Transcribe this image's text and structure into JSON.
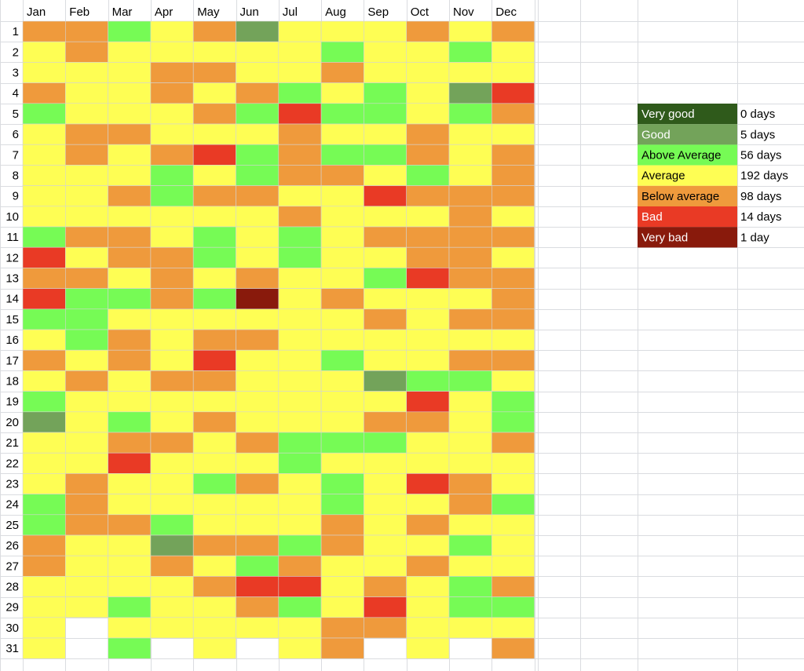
{
  "colors": {
    "Very good": "#2f5a1b",
    "Good": "#73a35a",
    "Above Average": "#76fb55",
    "Average": "#fefe54",
    "Below average": "#ef9a3c",
    "Bad": "#e93a25",
    "Very bad": "#891a0c",
    "empty": "#ffffff"
  },
  "chart_data": {
    "type": "heatmap",
    "columns": [
      "Jan",
      "Feb",
      "Mar",
      "Apr",
      "May",
      "Jun",
      "Jul",
      "Aug",
      "Sep",
      "Oct",
      "Nov",
      "Dec"
    ],
    "rows": [
      "1",
      "2",
      "3",
      "4",
      "5",
      "6",
      "7",
      "8",
      "9",
      "10",
      "11",
      "12",
      "13",
      "14",
      "15",
      "16",
      "17",
      "18",
      "19",
      "20",
      "21",
      "22",
      "23",
      "24",
      "25",
      "26",
      "27",
      "28",
      "29",
      "30",
      "31"
    ],
    "codes": {
      "VG": "Very good",
      "G": "Good",
      "AA": "Above Average",
      "A": "Average",
      "BA": "Below average",
      "B": "Bad",
      "VB": "Very bad",
      "X": "empty"
    },
    "cells": [
      [
        "BA",
        "BA",
        "AA",
        "A",
        "BA",
        "G",
        "A",
        "A",
        "A",
        "BA",
        "A",
        "BA"
      ],
      [
        "A",
        "BA",
        "A",
        "A",
        "A",
        "A",
        "A",
        "AA",
        "A",
        "A",
        "AA",
        "A"
      ],
      [
        "A",
        "A",
        "A",
        "BA",
        "BA",
        "A",
        "A",
        "BA",
        "A",
        "A",
        "A",
        "A"
      ],
      [
        "BA",
        "A",
        "A",
        "BA",
        "A",
        "BA",
        "AA",
        "A",
        "AA",
        "A",
        "G",
        "B"
      ],
      [
        "AA",
        "A",
        "A",
        "A",
        "BA",
        "AA",
        "B",
        "AA",
        "AA",
        "A",
        "AA",
        "BA"
      ],
      [
        "A",
        "BA",
        "BA",
        "A",
        "A",
        "A",
        "BA",
        "A",
        "A",
        "BA",
        "A",
        "A"
      ],
      [
        "A",
        "BA",
        "A",
        "BA",
        "B",
        "AA",
        "BA",
        "AA",
        "AA",
        "BA",
        "A",
        "BA"
      ],
      [
        "A",
        "A",
        "A",
        "AA",
        "A",
        "AA",
        "BA",
        "BA",
        "A",
        "AA",
        "A",
        "BA"
      ],
      [
        "A",
        "A",
        "BA",
        "AA",
        "BA",
        "BA",
        "A",
        "A",
        "B",
        "BA",
        "BA",
        "BA"
      ],
      [
        "A",
        "A",
        "A",
        "A",
        "A",
        "A",
        "BA",
        "A",
        "A",
        "A",
        "BA",
        "A"
      ],
      [
        "AA",
        "BA",
        "BA",
        "A",
        "AA",
        "A",
        "AA",
        "A",
        "BA",
        "BA",
        "BA",
        "BA"
      ],
      [
        "B",
        "A",
        "BA",
        "BA",
        "AA",
        "A",
        "AA",
        "A",
        "A",
        "BA",
        "BA",
        "A"
      ],
      [
        "BA",
        "BA",
        "A",
        "BA",
        "A",
        "BA",
        "A",
        "A",
        "AA",
        "B",
        "BA",
        "BA"
      ],
      [
        "B",
        "AA",
        "AA",
        "BA",
        "AA",
        "VB",
        "A",
        "BA",
        "A",
        "A",
        "A",
        "BA"
      ],
      [
        "AA",
        "AA",
        "A",
        "A",
        "A",
        "A",
        "A",
        "A",
        "BA",
        "A",
        "BA",
        "BA"
      ],
      [
        "A",
        "AA",
        "BA",
        "A",
        "BA",
        "BA",
        "A",
        "A",
        "A",
        "A",
        "A",
        "A"
      ],
      [
        "BA",
        "A",
        "BA",
        "A",
        "B",
        "A",
        "A",
        "AA",
        "A",
        "A",
        "BA",
        "BA"
      ],
      [
        "A",
        "BA",
        "A",
        "BA",
        "BA",
        "A",
        "A",
        "A",
        "G",
        "AA",
        "AA",
        "A"
      ],
      [
        "AA",
        "A",
        "A",
        "A",
        "A",
        "A",
        "A",
        "A",
        "A",
        "B",
        "A",
        "AA"
      ],
      [
        "G",
        "A",
        "AA",
        "A",
        "BA",
        "A",
        "A",
        "A",
        "BA",
        "BA",
        "A",
        "AA"
      ],
      [
        "A",
        "A",
        "BA",
        "BA",
        "A",
        "BA",
        "AA",
        "AA",
        "AA",
        "A",
        "A",
        "BA"
      ],
      [
        "A",
        "A",
        "B",
        "A",
        "A",
        "A",
        "AA",
        "A",
        "A",
        "A",
        "A",
        "A"
      ],
      [
        "A",
        "BA",
        "A",
        "A",
        "AA",
        "BA",
        "A",
        "AA",
        "A",
        "B",
        "BA",
        "A"
      ],
      [
        "AA",
        "BA",
        "A",
        "A",
        "A",
        "A",
        "A",
        "AA",
        "A",
        "A",
        "BA",
        "AA"
      ],
      [
        "AA",
        "BA",
        "BA",
        "AA",
        "A",
        "A",
        "A",
        "BA",
        "A",
        "BA",
        "A",
        "A"
      ],
      [
        "BA",
        "A",
        "A",
        "G",
        "BA",
        "BA",
        "AA",
        "BA",
        "A",
        "A",
        "AA",
        "A"
      ],
      [
        "BA",
        "A",
        "A",
        "BA",
        "A",
        "AA",
        "BA",
        "A",
        "A",
        "BA",
        "A",
        "A"
      ],
      [
        "A",
        "A",
        "A",
        "A",
        "BA",
        "B",
        "B",
        "A",
        "BA",
        "A",
        "AA",
        "BA"
      ],
      [
        "A",
        "A",
        "AA",
        "A",
        "A",
        "BA",
        "AA",
        "A",
        "B",
        "A",
        "AA",
        "AA"
      ],
      [
        "A",
        "X",
        "A",
        "A",
        "A",
        "A",
        "A",
        "BA",
        "BA",
        "A",
        "A",
        "A"
      ],
      [
        "A",
        "X",
        "AA",
        "X",
        "A",
        "X",
        "A",
        "BA",
        "X",
        "A",
        "X",
        "BA"
      ]
    ],
    "legend": [
      {
        "label": "Very good",
        "value": "0 days",
        "text_color": "#ffffff"
      },
      {
        "label": "Good",
        "value": "5 days",
        "text_color": "#ffffff"
      },
      {
        "label": "Above Average",
        "value": "56 days",
        "text_color": "#000000"
      },
      {
        "label": "Average",
        "value": "192 days",
        "text_color": "#000000"
      },
      {
        "label": "Below average",
        "value": "98 days",
        "text_color": "#000000"
      },
      {
        "label": "Bad",
        "value": "14 days",
        "text_color": "#ffffff"
      },
      {
        "label": "Very bad",
        "value": "1 day",
        "text_color": "#ffffff"
      }
    ],
    "legend_placement": "right"
  }
}
